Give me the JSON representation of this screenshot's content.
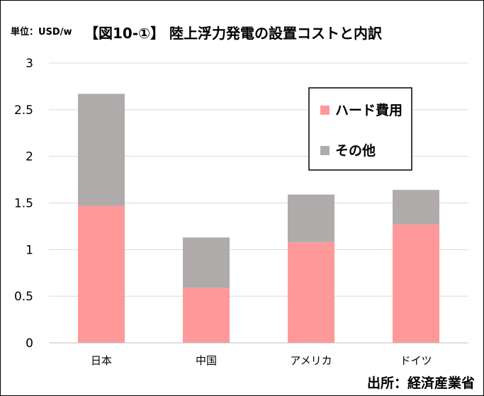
{
  "header": {
    "unit_label": "単位：USD/w",
    "title": "【図10-①】 陸上浮力発電の設置コストと内訳"
  },
  "footer": {
    "source": "出所：経済産業省"
  },
  "chart_data": {
    "type": "bar",
    "stacked": true,
    "title": "【図10-①】 陸上浮力発電の設置コストと内訳",
    "xlabel": "",
    "ylabel": "",
    "ylim": [
      0,
      3
    ],
    "yticks": [
      "0",
      "0.5",
      "1",
      "1.5",
      "2",
      "2.5",
      "3"
    ],
    "grid": true,
    "legend_position": "top-right",
    "categories": [
      "日本",
      "中国",
      "アメリカ",
      "ドイツ"
    ],
    "series": [
      {
        "name": "ハード費用",
        "color": "#FF9999",
        "values": [
          1.47,
          0.59,
          1.08,
          1.27
        ]
      },
      {
        "name": "その他",
        "color": "#AFABAB",
        "values": [
          1.2,
          0.54,
          0.51,
          0.37
        ]
      }
    ]
  }
}
